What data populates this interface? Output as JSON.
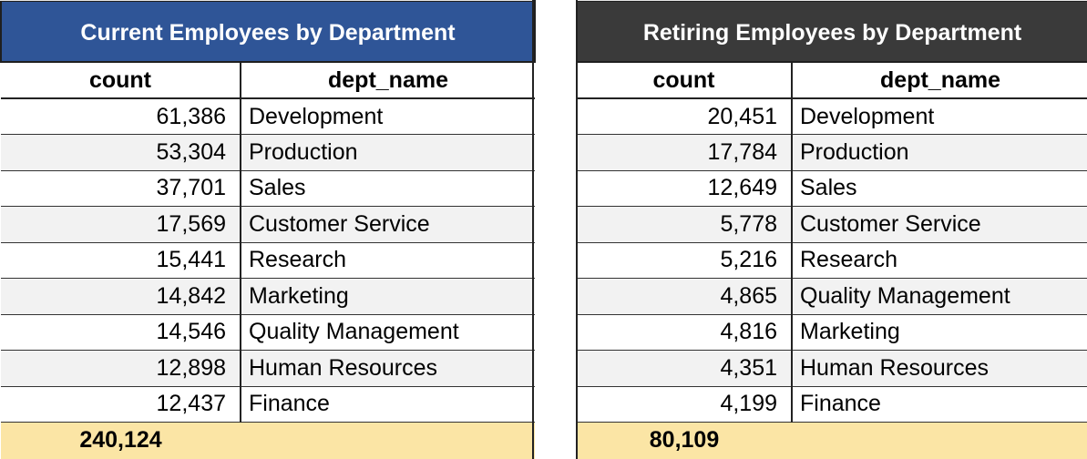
{
  "current": {
    "title": "Current Employees by Department",
    "columns": {
      "count": "count",
      "dept": "dept_name"
    },
    "rows": [
      {
        "count": "61,386",
        "dept": "Development"
      },
      {
        "count": "53,304",
        "dept": "Production"
      },
      {
        "count": "37,701",
        "dept": "Sales"
      },
      {
        "count": "17,569",
        "dept": "Customer Service"
      },
      {
        "count": "15,441",
        "dept": "Research"
      },
      {
        "count": "14,842",
        "dept": "Marketing"
      },
      {
        "count": "14,546",
        "dept": "Quality Management"
      },
      {
        "count": "12,898",
        "dept": "Human Resources"
      },
      {
        "count": "12,437",
        "dept": "Finance"
      }
    ],
    "total": "240,124",
    "colors": {
      "header": "#2f5597",
      "total": "#fbe5a5"
    }
  },
  "retiring": {
    "title": "Retiring Employees by Department",
    "columns": {
      "count": "count",
      "dept": "dept_name"
    },
    "rows": [
      {
        "count": "20,451",
        "dept": "Development"
      },
      {
        "count": "17,784",
        "dept": "Production"
      },
      {
        "count": "12,649",
        "dept": "Sales"
      },
      {
        "count": "5,778",
        "dept": "Customer Service"
      },
      {
        "count": "5,216",
        "dept": "Research"
      },
      {
        "count": "4,865",
        "dept": "Quality Management"
      },
      {
        "count": "4,816",
        "dept": "Marketing"
      },
      {
        "count": "4,351",
        "dept": "Human Resources"
      },
      {
        "count": "4,199",
        "dept": "Finance"
      }
    ],
    "total": "80,109",
    "colors": {
      "header": "#3a3a3a",
      "total": "#fbe5a5"
    }
  }
}
